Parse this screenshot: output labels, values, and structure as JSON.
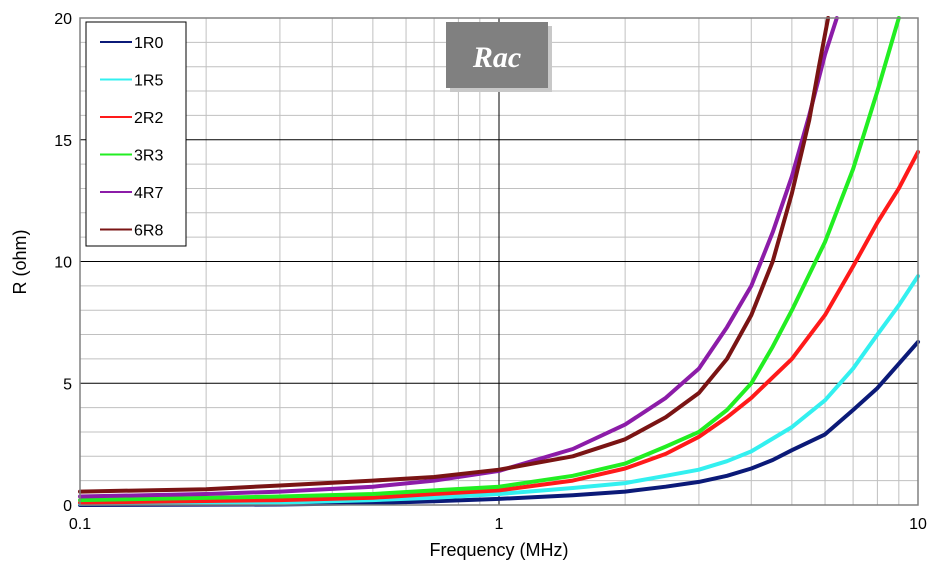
{
  "chart_data": {
    "type": "line",
    "title": "Rac",
    "xlabel": "Frequency (MHz)",
    "ylabel": "R (ohm)",
    "x_scale": "log",
    "xlim": [
      0.1,
      10
    ],
    "ylim": [
      0,
      20
    ],
    "x_ticks": [
      "0.1",
      "1",
      "10"
    ],
    "y_ticks": [
      "0",
      "5",
      "10",
      "15",
      "20"
    ],
    "grid": true,
    "legend_position": "top-left",
    "series": [
      {
        "name": "1R0",
        "color": "#0b1a78",
        "points": [
          [
            0.1,
            0
          ],
          [
            0.3,
            0.02
          ],
          [
            0.5,
            0.08
          ],
          [
            0.7,
            0.15
          ],
          [
            1,
            0.25
          ],
          [
            1.5,
            0.4
          ],
          [
            2,
            0.55
          ],
          [
            2.5,
            0.75
          ],
          [
            3,
            0.95
          ],
          [
            3.5,
            1.2
          ],
          [
            4,
            1.5
          ],
          [
            4.5,
            1.85
          ],
          [
            5,
            2.25
          ],
          [
            6,
            2.9
          ],
          [
            7,
            3.9
          ],
          [
            8,
            4.8
          ],
          [
            9,
            5.8
          ],
          [
            10,
            6.7
          ]
        ]
      },
      {
        "name": "1R5",
        "color": "#33f0f0",
        "points": [
          [
            0.1,
            0.05
          ],
          [
            0.3,
            0.1
          ],
          [
            0.5,
            0.2
          ],
          [
            0.7,
            0.3
          ],
          [
            1,
            0.45
          ],
          [
            1.5,
            0.7
          ],
          [
            2,
            0.9
          ],
          [
            2.5,
            1.2
          ],
          [
            3,
            1.45
          ],
          [
            3.5,
            1.8
          ],
          [
            4,
            2.2
          ],
          [
            5,
            3.2
          ],
          [
            6,
            4.3
          ],
          [
            7,
            5.6
          ],
          [
            8,
            7
          ],
          [
            9,
            8.2
          ],
          [
            10,
            9.4
          ]
        ]
      },
      {
        "name": "2R2",
        "color": "#ff1a1a",
        "points": [
          [
            0.1,
            0.1
          ],
          [
            0.3,
            0.2
          ],
          [
            0.5,
            0.3
          ],
          [
            0.7,
            0.45
          ],
          [
            1,
            0.6
          ],
          [
            1.5,
            1
          ],
          [
            2,
            1.5
          ],
          [
            2.5,
            2.1
          ],
          [
            3,
            2.8
          ],
          [
            3.5,
            3.6
          ],
          [
            4,
            4.4
          ],
          [
            5,
            6
          ],
          [
            6,
            7.8
          ],
          [
            7,
            9.8
          ],
          [
            8,
            11.6
          ],
          [
            9,
            13
          ],
          [
            10,
            14.5
          ]
        ]
      },
      {
        "name": "3R3",
        "color": "#22ee22",
        "points": [
          [
            0.1,
            0.2
          ],
          [
            0.3,
            0.35
          ],
          [
            0.5,
            0.45
          ],
          [
            0.7,
            0.6
          ],
          [
            1,
            0.75
          ],
          [
            1.5,
            1.2
          ],
          [
            2,
            1.7
          ],
          [
            2.5,
            2.4
          ],
          [
            3,
            3
          ],
          [
            3.5,
            3.9
          ],
          [
            4,
            5
          ],
          [
            4.5,
            6.5
          ],
          [
            5,
            8
          ],
          [
            6,
            10.8
          ],
          [
            7,
            13.8
          ],
          [
            8,
            17
          ],
          [
            9,
            20
          ]
        ]
      },
      {
        "name": "4R7",
        "color": "#8c1ca8",
        "points": [
          [
            0.1,
            0.35
          ],
          [
            0.2,
            0.45
          ],
          [
            0.3,
            0.55
          ],
          [
            0.5,
            0.75
          ],
          [
            0.7,
            1
          ],
          [
            1,
            1.4
          ],
          [
            1.5,
            2.3
          ],
          [
            2,
            3.3
          ],
          [
            2.5,
            4.4
          ],
          [
            3,
            5.6
          ],
          [
            3.5,
            7.3
          ],
          [
            4,
            9
          ],
          [
            4.5,
            11.2
          ],
          [
            5,
            13.5
          ],
          [
            5.5,
            16
          ],
          [
            6,
            18.5
          ],
          [
            6.4,
            20
          ]
        ]
      },
      {
        "name": "6R8",
        "color": "#7a1414",
        "points": [
          [
            0.1,
            0.55
          ],
          [
            0.2,
            0.65
          ],
          [
            0.3,
            0.8
          ],
          [
            0.5,
            1
          ],
          [
            0.7,
            1.15
          ],
          [
            1,
            1.45
          ],
          [
            1.5,
            2
          ],
          [
            2,
            2.7
          ],
          [
            2.5,
            3.6
          ],
          [
            3,
            4.6
          ],
          [
            3.5,
            6
          ],
          [
            4,
            7.8
          ],
          [
            4.5,
            10
          ],
          [
            5,
            12.8
          ],
          [
            5.5,
            15.8
          ],
          [
            5.8,
            18
          ],
          [
            6.1,
            20
          ]
        ]
      }
    ]
  }
}
